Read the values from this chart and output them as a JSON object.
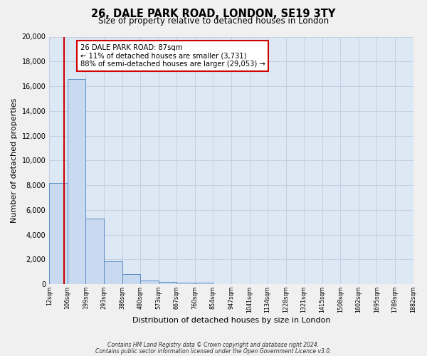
{
  "title": "26, DALE PARK ROAD, LONDON, SE19 3TY",
  "subtitle": "Size of property relative to detached houses in London",
  "xlabel": "Distribution of detached houses by size in London",
  "ylabel": "Number of detached properties",
  "bin_edges": [
    12,
    106,
    199,
    293,
    386,
    480,
    573,
    667,
    760,
    854,
    947,
    1041,
    1134,
    1228,
    1321,
    1415,
    1508,
    1602,
    1695,
    1789,
    1882
  ],
  "bar_heights": [
    8200,
    16600,
    5300,
    1850,
    800,
    300,
    200,
    100,
    100,
    0,
    0,
    0,
    0,
    0,
    0,
    0,
    0,
    0,
    0,
    0
  ],
  "bar_color": "#c9d9f0",
  "bar_edge_color": "#5b8ec4",
  "property_size": 87,
  "property_label": "26 DALE PARK ROAD: 87sqm",
  "annotation_line1": "← 11% of detached houses are smaller (3,731)",
  "annotation_line2": "88% of semi-detached houses are larger (29,053) →",
  "annotation_box_color": "#ffffff",
  "annotation_border_color": "#cc0000",
  "vline_color": "#cc0000",
  "ylim": [
    0,
    20000
  ],
  "yticks": [
    0,
    2000,
    4000,
    6000,
    8000,
    10000,
    12000,
    14000,
    16000,
    18000,
    20000
  ],
  "fig_bg_color": "#f0f0f0",
  "plot_bg_color": "#dde8f5",
  "grid_color": "#c0cce0",
  "footer1": "Contains HM Land Registry data © Crown copyright and database right 2024.",
  "footer2": "Contains public sector information licensed under the Open Government Licence v3.0."
}
